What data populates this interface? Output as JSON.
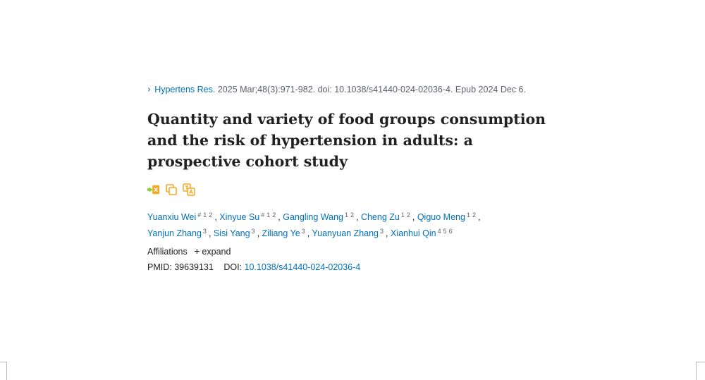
{
  "citation": {
    "journal": "Hypertens Res.",
    "details": "2025 Mar;48(3):971-982. doi: 10.1038/s41440-024-02036-4. Epub 2024 Dec 6."
  },
  "title": "Quantity and variety of food groups consumption and the risk of hypertension in adults: a prospective cohort study",
  "tools": [
    "share-arrow-icon",
    "copy-icon",
    "translate-icon"
  ],
  "authors": [
    {
      "name": "Yuanxiu Wei",
      "marks": [
        "#",
        "1",
        "2"
      ]
    },
    {
      "name": "Xinyue Su",
      "marks": [
        "#",
        "1",
        "2"
      ]
    },
    {
      "name": "Gangling Wang",
      "marks": [
        "1",
        "2"
      ]
    },
    {
      "name": "Cheng Zu",
      "marks": [
        "1",
        "2"
      ]
    },
    {
      "name": "Qiguo Meng",
      "marks": [
        "1",
        "2"
      ]
    },
    {
      "name": "Yanjun Zhang",
      "marks": [
        "3"
      ]
    },
    {
      "name": "Sisi Yang",
      "marks": [
        "3"
      ]
    },
    {
      "name": "Ziliang Ye",
      "marks": [
        "3"
      ]
    },
    {
      "name": "Yuanyuan Zhang",
      "marks": [
        "3"
      ]
    },
    {
      "name": "Xianhui Qin",
      "marks": [
        "4",
        "5",
        "6"
      ]
    }
  ],
  "affiliations": {
    "label": "Affiliations",
    "expand_symbol": "+",
    "expand_label": "expand"
  },
  "ids": {
    "pmid_label": "PMID:",
    "pmid": "39639131",
    "doi_label": "DOI:",
    "doi": "10.1038/s41440-024-02036-4"
  },
  "colors": {
    "link": "#0071bc",
    "text": "#212121",
    "muted": "#5b616b",
    "tool_orange": "#f5a623"
  }
}
